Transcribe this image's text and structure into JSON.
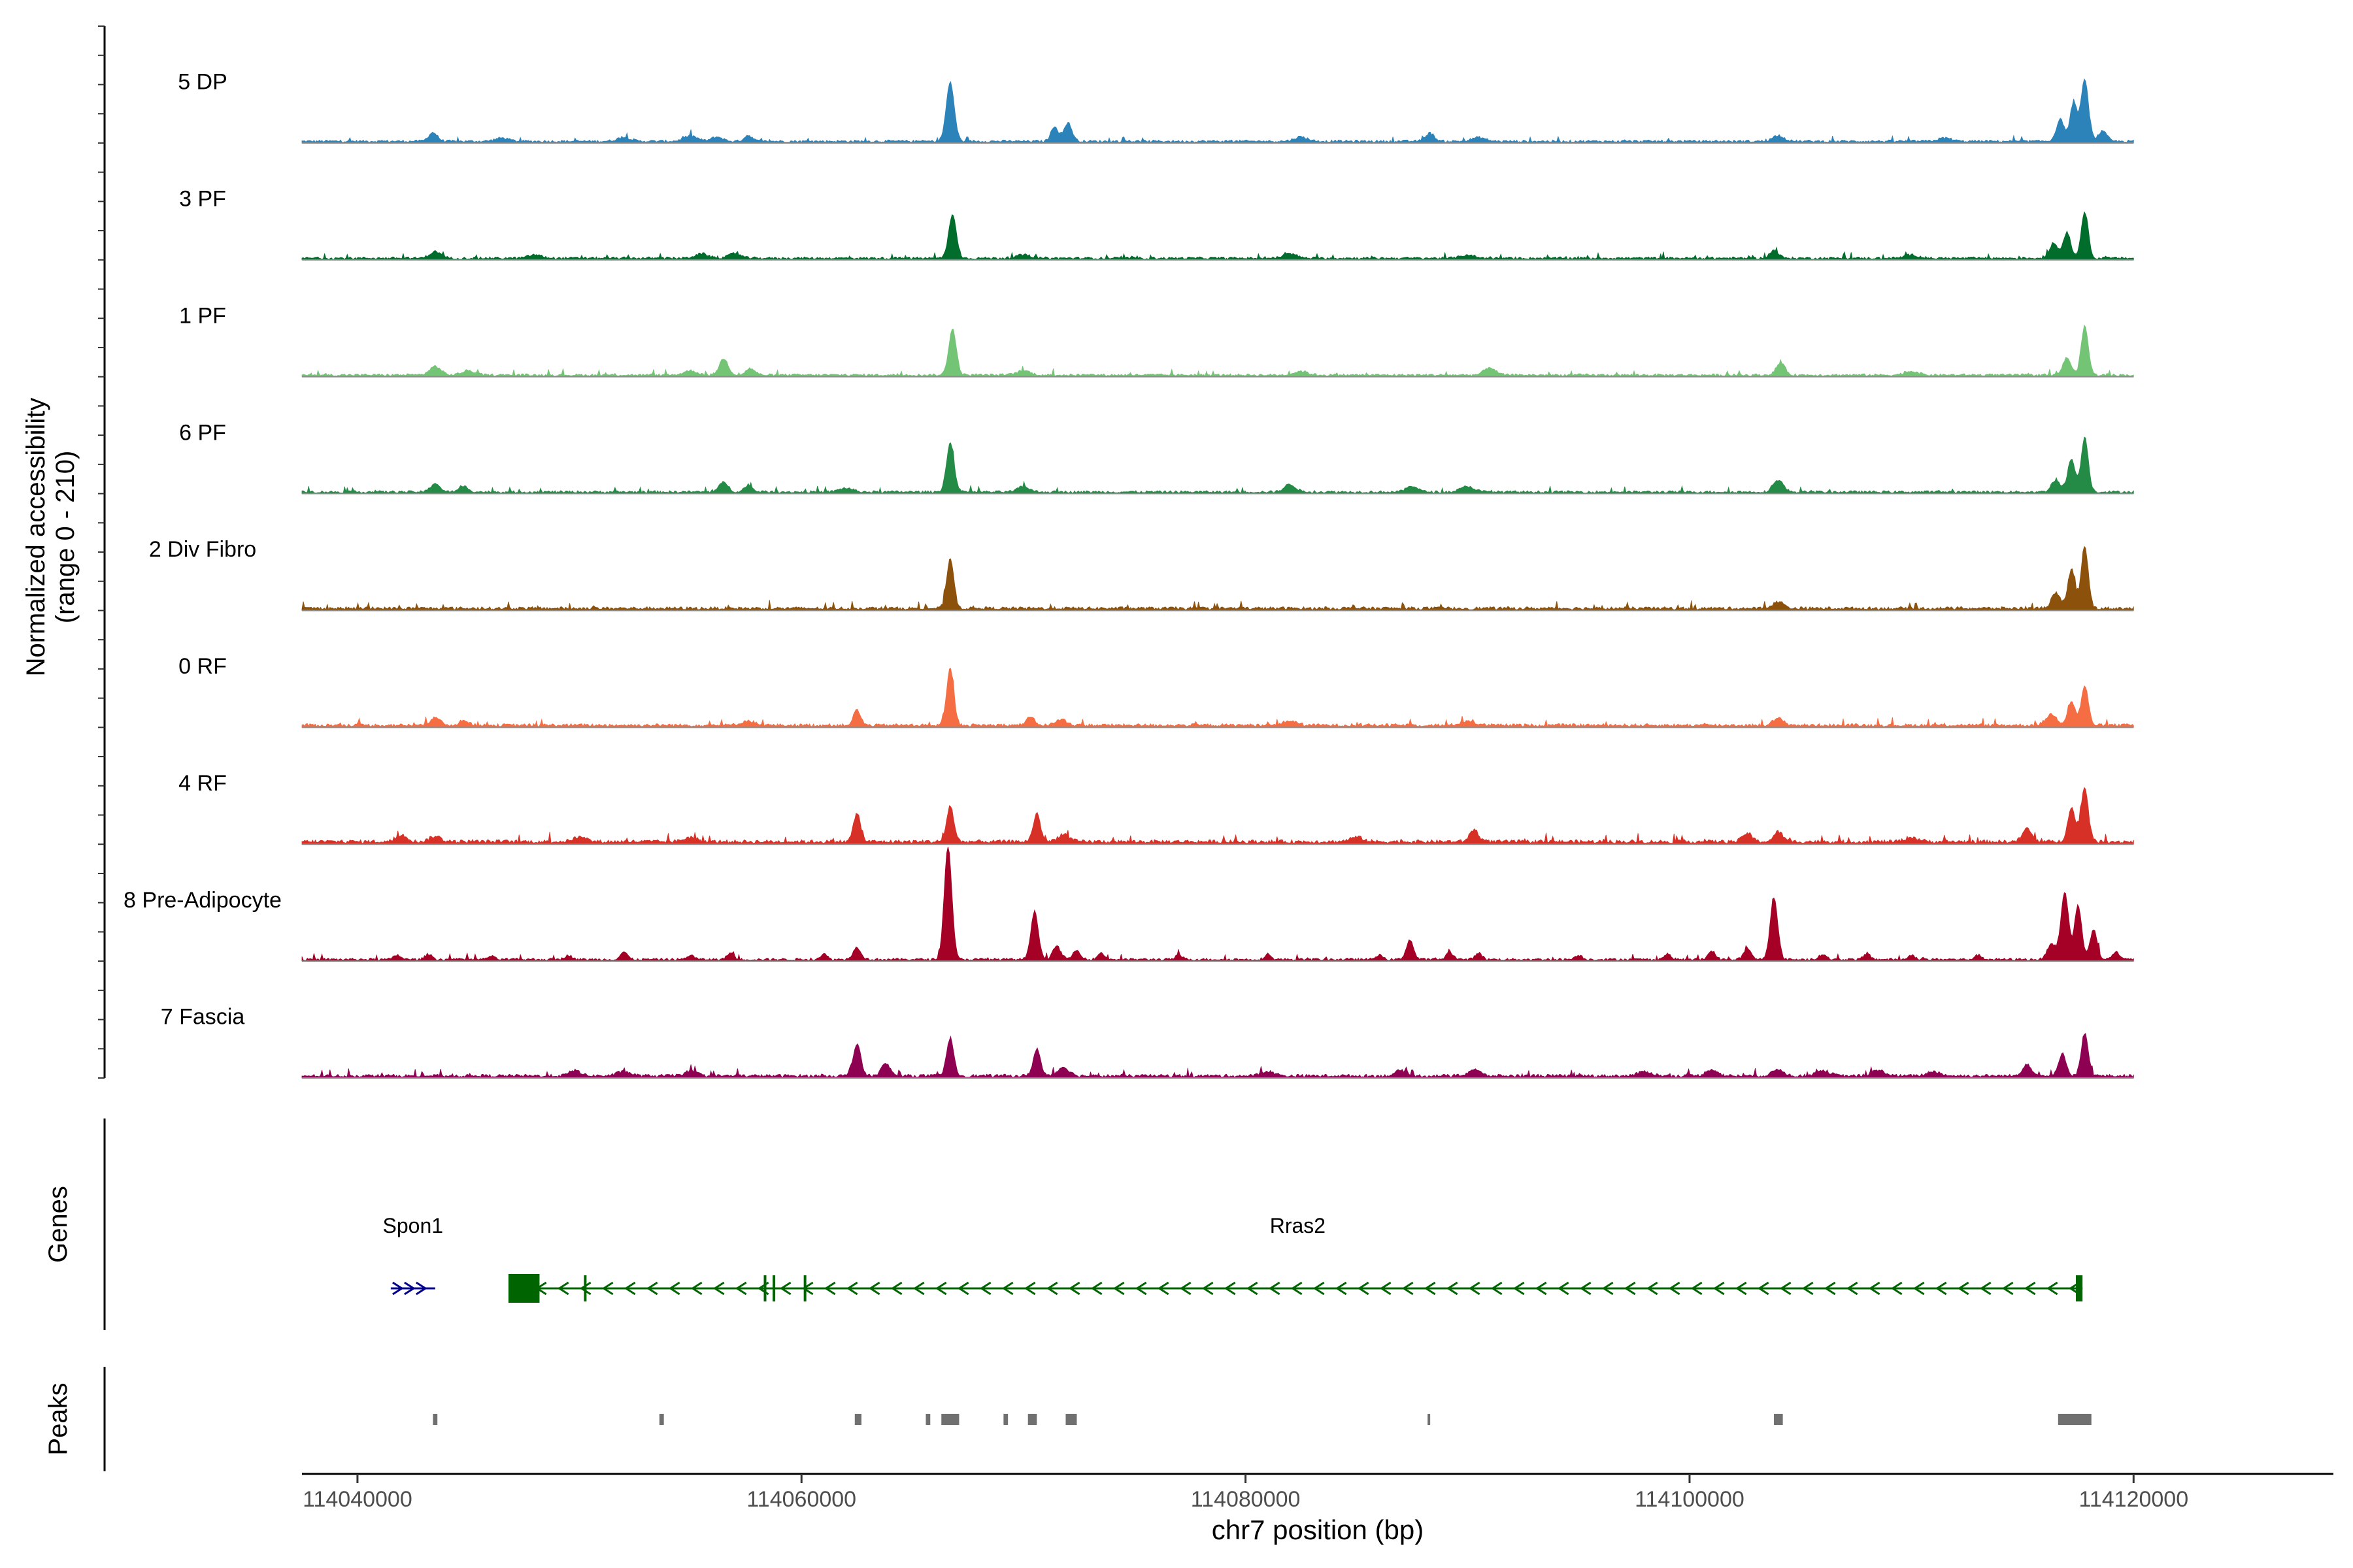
{
  "chart_data": {
    "type": "area",
    "title": "",
    "region": {
      "chromosome": "chr7",
      "start": 114040000,
      "end": 114120000
    },
    "xlabel": "chr7 position (bp)",
    "xlim": [
      114037500,
      114129000
    ],
    "x_ticks": [
      {
        "value": 114040000,
        "label": "114040000"
      },
      {
        "value": 114060000,
        "label": "114060000"
      },
      {
        "value": 114080000,
        "label": "114080000"
      },
      {
        "value": 114100000,
        "label": "114100000"
      },
      {
        "value": 114120000,
        "label": "114120000"
      }
    ],
    "ylabel_line1": "Normalized accessibility",
    "ylabel_line2": "(range 0 - 210)",
    "ylim": [
      0,
      210
    ],
    "track_span": [
      114037500,
      114120000
    ],
    "series": [
      {
        "name": "5 DP",
        "color": "#2B83BA",
        "baseline": 4,
        "peaks": [
          [
            114043400,
            16,
            200
          ],
          [
            114046500,
            6,
            300
          ],
          [
            114052000,
            7,
            300
          ],
          [
            114055000,
            10,
            300
          ],
          [
            114056200,
            8,
            250
          ],
          [
            114057600,
            11,
            180
          ],
          [
            114066700,
            108,
            180
          ],
          [
            114071400,
            28,
            160
          ],
          [
            114072000,
            34,
            180
          ],
          [
            114082500,
            8,
            300
          ],
          [
            114088300,
            15,
            200
          ],
          [
            114090500,
            7,
            300
          ],
          [
            114104000,
            11,
            250
          ],
          [
            114111500,
            6,
            300
          ],
          [
            114116700,
            40,
            180
          ],
          [
            114117300,
            68,
            160
          ],
          [
            114117800,
            112,
            170
          ],
          [
            114118600,
            18,
            200
          ]
        ]
      },
      {
        "name": "3 PF",
        "color": "#006D2C",
        "baseline": 4,
        "peaks": [
          [
            114043500,
            12,
            250
          ],
          [
            114048000,
            6,
            300
          ],
          [
            114055500,
            8,
            300
          ],
          [
            114057000,
            9,
            250
          ],
          [
            114066800,
            80,
            170
          ],
          [
            114070000,
            6,
            300
          ],
          [
            114082000,
            8,
            300
          ],
          [
            114090000,
            6,
            300
          ],
          [
            114103800,
            14,
            200
          ],
          [
            114110000,
            6,
            300
          ],
          [
            114116400,
            28,
            180
          ],
          [
            114117000,
            48,
            170
          ],
          [
            114117800,
            85,
            160
          ]
        ]
      },
      {
        "name": "1 PF",
        "color": "#74C476",
        "baseline": 4,
        "peaks": [
          [
            114043500,
            16,
            250
          ],
          [
            114045000,
            8,
            300
          ],
          [
            114055000,
            8,
            300
          ],
          [
            114056500,
            30,
            200
          ],
          [
            114057700,
            12,
            200
          ],
          [
            114066800,
            84,
            170
          ],
          [
            114070000,
            8,
            300
          ],
          [
            114082500,
            7,
            300
          ],
          [
            114091000,
            14,
            250
          ],
          [
            114104100,
            22,
            200
          ],
          [
            114110000,
            7,
            300
          ],
          [
            114117000,
            32,
            180
          ],
          [
            114117800,
            90,
            160
          ]
        ]
      },
      {
        "name": "6 PF",
        "color": "#238B45",
        "baseline": 4,
        "peaks": [
          [
            114043500,
            16,
            200
          ],
          [
            114044800,
            10,
            200
          ],
          [
            114056500,
            18,
            200
          ],
          [
            114057600,
            10,
            200
          ],
          [
            114062000,
            7,
            300
          ],
          [
            114066700,
            90,
            170
          ],
          [
            114070000,
            10,
            250
          ],
          [
            114082000,
            14,
            250
          ],
          [
            114087500,
            11,
            250
          ],
          [
            114090000,
            10,
            300
          ],
          [
            114104000,
            22,
            220
          ],
          [
            114116500,
            22,
            200
          ],
          [
            114117200,
            60,
            170
          ],
          [
            114117800,
            100,
            160
          ]
        ]
      },
      {
        "name": "2 Div Fibro",
        "color": "#8C510A",
        "baseline": 5,
        "peaks": [
          [
            114066700,
            92,
            160
          ],
          [
            114104000,
            12,
            250
          ],
          [
            114116500,
            28,
            200
          ],
          [
            114117200,
            72,
            160
          ],
          [
            114117800,
            112,
            160
          ]
        ]
      },
      {
        "name": "0 RF",
        "color": "#F46D43",
        "baseline": 5,
        "peaks": [
          [
            114043500,
            16,
            200
          ],
          [
            114044800,
            10,
            200
          ],
          [
            114057600,
            8,
            300
          ],
          [
            114062500,
            28,
            160
          ],
          [
            114066700,
            104,
            160
          ],
          [
            114070300,
            14,
            200
          ],
          [
            114071700,
            10,
            250
          ],
          [
            114082000,
            8,
            300
          ],
          [
            114090000,
            8,
            300
          ],
          [
            114104000,
            12,
            250
          ],
          [
            114116300,
            20,
            250
          ],
          [
            114117200,
            44,
            170
          ],
          [
            114117800,
            72,
            160
          ]
        ]
      },
      {
        "name": "4 RF",
        "color": "#D73027",
        "baseline": 6,
        "peaks": [
          [
            114042000,
            12,
            250
          ],
          [
            114043500,
            10,
            250
          ],
          [
            114050000,
            8,
            300
          ],
          [
            114055000,
            8,
            300
          ],
          [
            114062500,
            52,
            160
          ],
          [
            114066700,
            66,
            160
          ],
          [
            114070600,
            52,
            160
          ],
          [
            114071800,
            14,
            250
          ],
          [
            114085000,
            8,
            300
          ],
          [
            114090300,
            22,
            200
          ],
          [
            114102600,
            16,
            200
          ],
          [
            114104000,
            18,
            200
          ],
          [
            114110000,
            8,
            300
          ],
          [
            114115200,
            24,
            200
          ],
          [
            114117200,
            62,
            170
          ],
          [
            114117800,
            100,
            160
          ]
        ]
      },
      {
        "name": "8 Pre-Adipocyte",
        "color": "#A50026",
        "baseline": 4,
        "peaks": [
          [
            114041800,
            8,
            150
          ],
          [
            114043200,
            10,
            150
          ],
          [
            114046000,
            6,
            150
          ],
          [
            114049500,
            8,
            150
          ],
          [
            114052000,
            14,
            150
          ],
          [
            114055000,
            8,
            150
          ],
          [
            114056800,
            12,
            150
          ],
          [
            114061000,
            10,
            150
          ],
          [
            114062500,
            22,
            180
          ],
          [
            114066600,
            208,
            170
          ],
          [
            114070500,
            88,
            170
          ],
          [
            114071500,
            24,
            180
          ],
          [
            114072400,
            16,
            180
          ],
          [
            114073500,
            12,
            150
          ],
          [
            114077000,
            8,
            150
          ],
          [
            114081000,
            8,
            150
          ],
          [
            114086000,
            8,
            150
          ],
          [
            114087400,
            36,
            160
          ],
          [
            114089200,
            14,
            150
          ],
          [
            114090500,
            12,
            150
          ],
          [
            114095000,
            8,
            150
          ],
          [
            114099000,
            10,
            150
          ],
          [
            114101000,
            16,
            150
          ],
          [
            114102600,
            20,
            160
          ],
          [
            114103800,
            112,
            170
          ],
          [
            114106000,
            10,
            150
          ],
          [
            114108000,
            10,
            150
          ],
          [
            114110000,
            8,
            150
          ],
          [
            114113000,
            8,
            150
          ],
          [
            114116300,
            30,
            180
          ],
          [
            114116900,
            124,
            170
          ],
          [
            114117500,
            100,
            160
          ],
          [
            114118200,
            56,
            160
          ],
          [
            114119200,
            14,
            150
          ]
        ]
      },
      {
        "name": "7 Fascia",
        "color": "#8E0152",
        "baseline": 5,
        "peaks": [
          [
            114049800,
            10,
            250
          ],
          [
            114052000,
            8,
            300
          ],
          [
            114055000,
            8,
            300
          ],
          [
            114062500,
            58,
            170
          ],
          [
            114063800,
            22,
            200
          ],
          [
            114066700,
            70,
            160
          ],
          [
            114070600,
            50,
            160
          ],
          [
            114071800,
            16,
            250
          ],
          [
            114081000,
            8,
            300
          ],
          [
            114087000,
            10,
            250
          ],
          [
            114090300,
            12,
            250
          ],
          [
            114098000,
            8,
            300
          ],
          [
            114101000,
            12,
            250
          ],
          [
            114104000,
            12,
            250
          ],
          [
            114106000,
            10,
            300
          ],
          [
            114108500,
            10,
            300
          ],
          [
            114111000,
            8,
            300
          ],
          [
            114115200,
            22,
            200
          ],
          [
            114116800,
            40,
            170
          ],
          [
            114117800,
            78,
            160
          ]
        ]
      }
    ],
    "genes_label": "Genes",
    "genes": [
      {
        "name": "Spon1",
        "strand": "+",
        "start": 114041500,
        "end": 114043500,
        "color": "#00008B",
        "exons": []
      },
      {
        "name": "Rras2",
        "strand": "-",
        "start": 114047000,
        "end": 114117700,
        "color": "#006400",
        "exons": [
          [
            114046800,
            114048200
          ],
          [
            114050200,
            114050300
          ],
          [
            114058300,
            114058400
          ],
          [
            114058700,
            114058800
          ],
          [
            114060100,
            114060200
          ],
          [
            114117400,
            114117700
          ]
        ]
      }
    ],
    "peaks_label": "Peaks",
    "peaks": [
      [
        114043400,
        114043600
      ],
      [
        114053600,
        114053800
      ],
      [
        114062400,
        114062700
      ],
      [
        114065600,
        114065800
      ],
      [
        114066300,
        114067100
      ],
      [
        114069100,
        114069300
      ],
      [
        114070200,
        114070600
      ],
      [
        114071900,
        114072400
      ],
      [
        114088200,
        114088300
      ],
      [
        114103800,
        114104200
      ],
      [
        114116600,
        114118100
      ]
    ]
  }
}
